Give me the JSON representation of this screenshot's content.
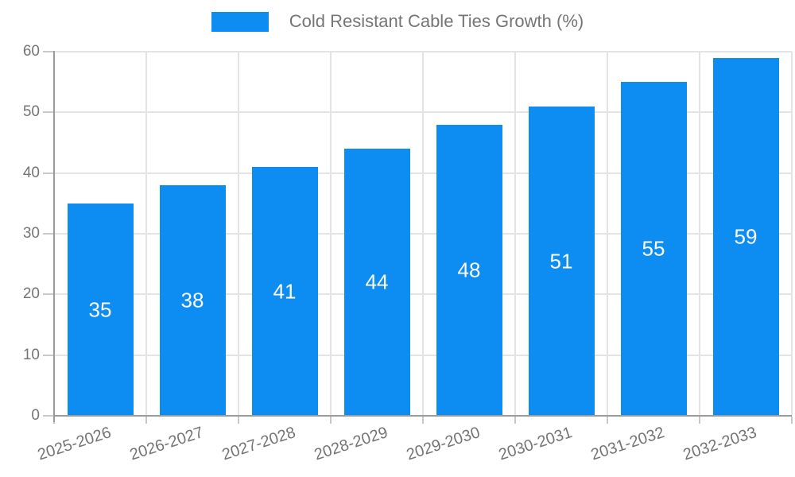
{
  "legend": {
    "label": "Cold Resistant Cable Ties Growth (%)"
  },
  "colors": {
    "bar_fill": "#0d8cf2",
    "bar_value_text": "#ffffff",
    "grid_line": "#e3e3e3",
    "axis_line": "#9b9b9b",
    "tick_mark": "#c9c9c9",
    "label_text": "#757575",
    "background": "#ffffff"
  },
  "chart_data": {
    "type": "bar",
    "title": "Cold Resistant Cable Ties Growth (%)",
    "series_name": "Cold Resistant Cable Ties Growth (%)",
    "categories": [
      "2025-2026",
      "2026-2027",
      "2027-2028",
      "2028-2029",
      "2029-2030",
      "2030-2031",
      "2031-2032",
      "2032-2033"
    ],
    "values": [
      35,
      38,
      41,
      44,
      48,
      51,
      55,
      59
    ],
    "xlabel": "",
    "ylabel": "",
    "ylim": [
      0,
      60
    ],
    "yticks": [
      0,
      10,
      20,
      30,
      40,
      50,
      60
    ],
    "grid": true,
    "legend_position": "top-center",
    "value_labels": "inside-center",
    "x_tick_rotation_deg": -18
  }
}
